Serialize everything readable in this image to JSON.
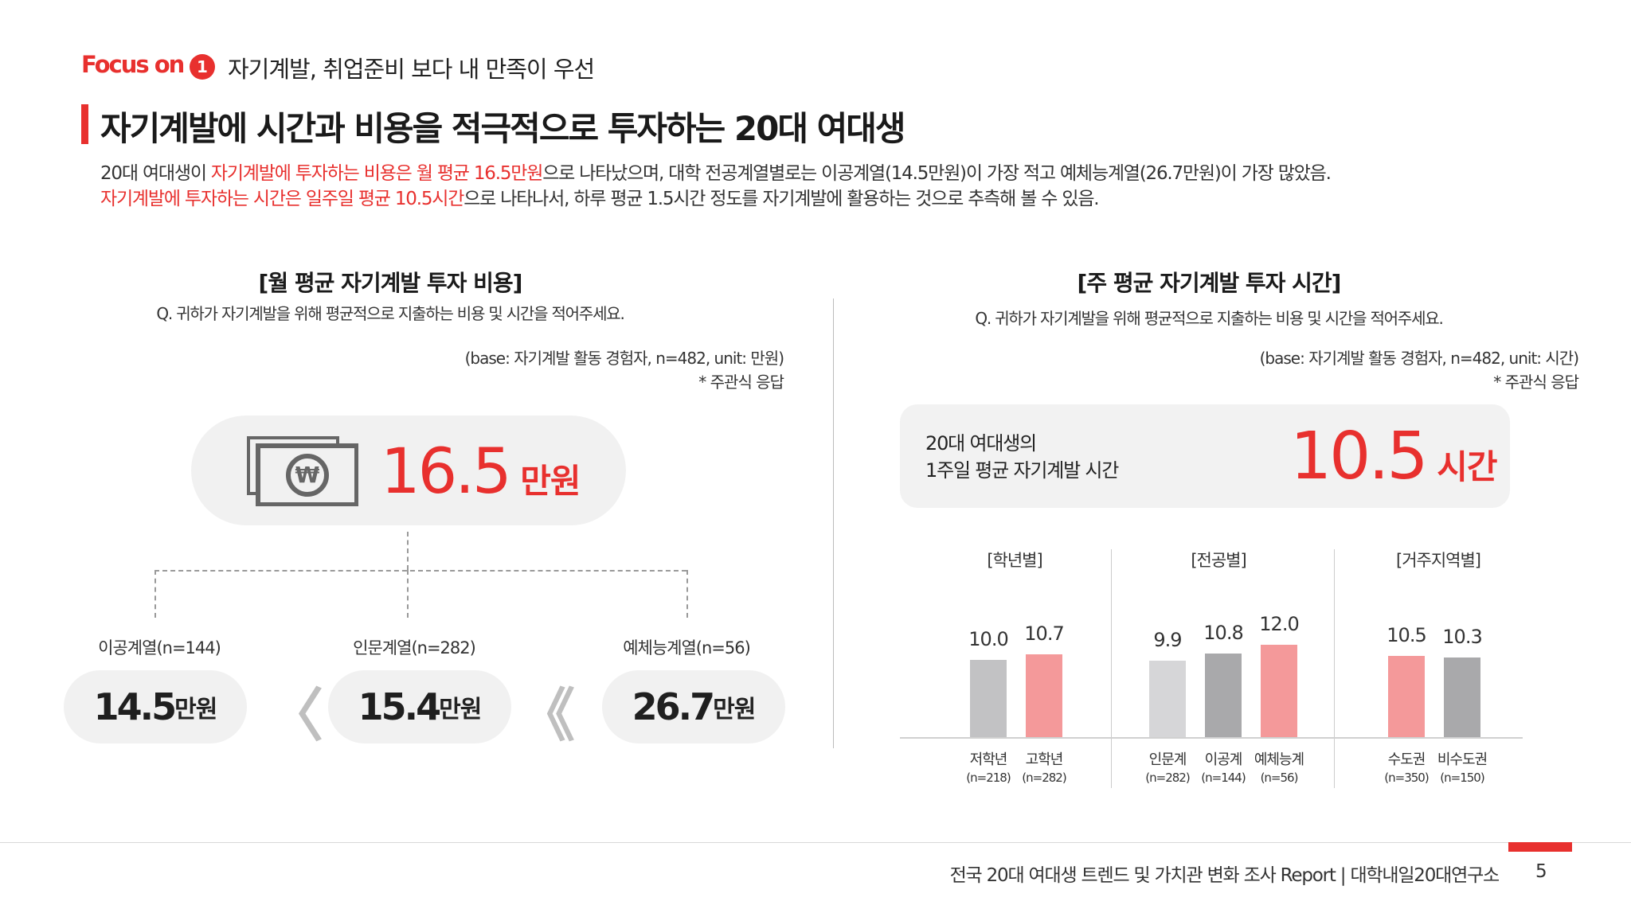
{
  "header": {
    "focus_label": "Focus on",
    "section_number": "1",
    "section_title": "자기계발, 취업준비 보다 내 만족이 우선",
    "main_title": "자기계발에 시간과 비용을 적극적으로 투자하는 20대 여대생",
    "desc_line1_a": "20대 여대생이 ",
    "desc_line1_b": "자기계발에 투자하는 비용은 월 평균 16.5만원",
    "desc_line1_c": "으로 나타났으며, 대학 전공계열별로는 이공계열(14.5만원)이 가장 적고 예체능계열(26.7만원)이 가장 많았음.",
    "desc_line2_a": "자기계발에 투자하는 시간은 일주일 평균 10.5시간",
    "desc_line2_b": "으로 나타나서, 하루 평균 1.5시간 정도를 자기계발에 활용하는 것으로 추측해 볼 수 있음."
  },
  "left": {
    "heading": "[월 평균 자기계발 투자 비용]",
    "question": "Q. 귀하가 자기계발을 위해 평균적으로 지출하는 비용 및 시간을 적어주세요.",
    "base": "(base: 자기계발 활동 경험자, n=482, unit: 만원)",
    "note": "* 주관식 응답",
    "icon": "won-money-icon",
    "total_value": "16.5",
    "total_unit": " 만원",
    "groups": [
      {
        "label": "이공계열(n=144)",
        "value": "14.5",
        "unit": "만원"
      },
      {
        "label": "인문계열(n=282)",
        "value": "15.4",
        "unit": "만원"
      },
      {
        "label": "예체능계열(n=56)",
        "value": "26.7",
        "unit": "만원"
      }
    ],
    "chevron_single": "〈",
    "chevron_double": "《"
  },
  "right": {
    "heading": "[주 평균 자기계발 투자 시간]",
    "question": "Q. 귀하가 자기계발을 위해 평균적으로 지출하는 비용 및 시간을 적어주세요.",
    "base": "(base: 자기계발 활동 경험자, n=482, unit: 시간)",
    "note": "* 주관식 응답",
    "box_line1": "20대 여대생의",
    "box_line2": "1주일 평균 자기계발 시간",
    "total_value": "10.5",
    "total_unit": " 시간"
  },
  "chart_data": {
    "type": "bar",
    "ylabel": "",
    "ylim": [
      0,
      14
    ],
    "groups": [
      "[학년별]",
      "[전공별]",
      "[거주지역별]"
    ],
    "categories": [
      "저학년",
      "고학년",
      "인문계",
      "이공계",
      "예체능계",
      "수도권",
      "비수도권"
    ],
    "n_labels": [
      "(n=218)",
      "(n=282)",
      "(n=282)",
      "(n=144)",
      "(n=56)",
      "(n=350)",
      "(n=150)"
    ],
    "values": [
      10.0,
      10.7,
      9.9,
      10.8,
      12.0,
      10.5,
      10.3
    ],
    "value_labels": [
      "10.0",
      "10.7",
      "9.9",
      "10.8",
      "12.0",
      "10.5",
      "10.3"
    ],
    "colors": [
      "#c2c2c4",
      "#f4999a",
      "#d6d6d8",
      "#a9a9ab",
      "#f4999a",
      "#f4999a",
      "#a9a9ab"
    ]
  },
  "footer": {
    "report": "전국 20대 여대생 트렌드 및 가치관 변화 조사 Report  |  대학내일20대연구소",
    "page": "5"
  }
}
